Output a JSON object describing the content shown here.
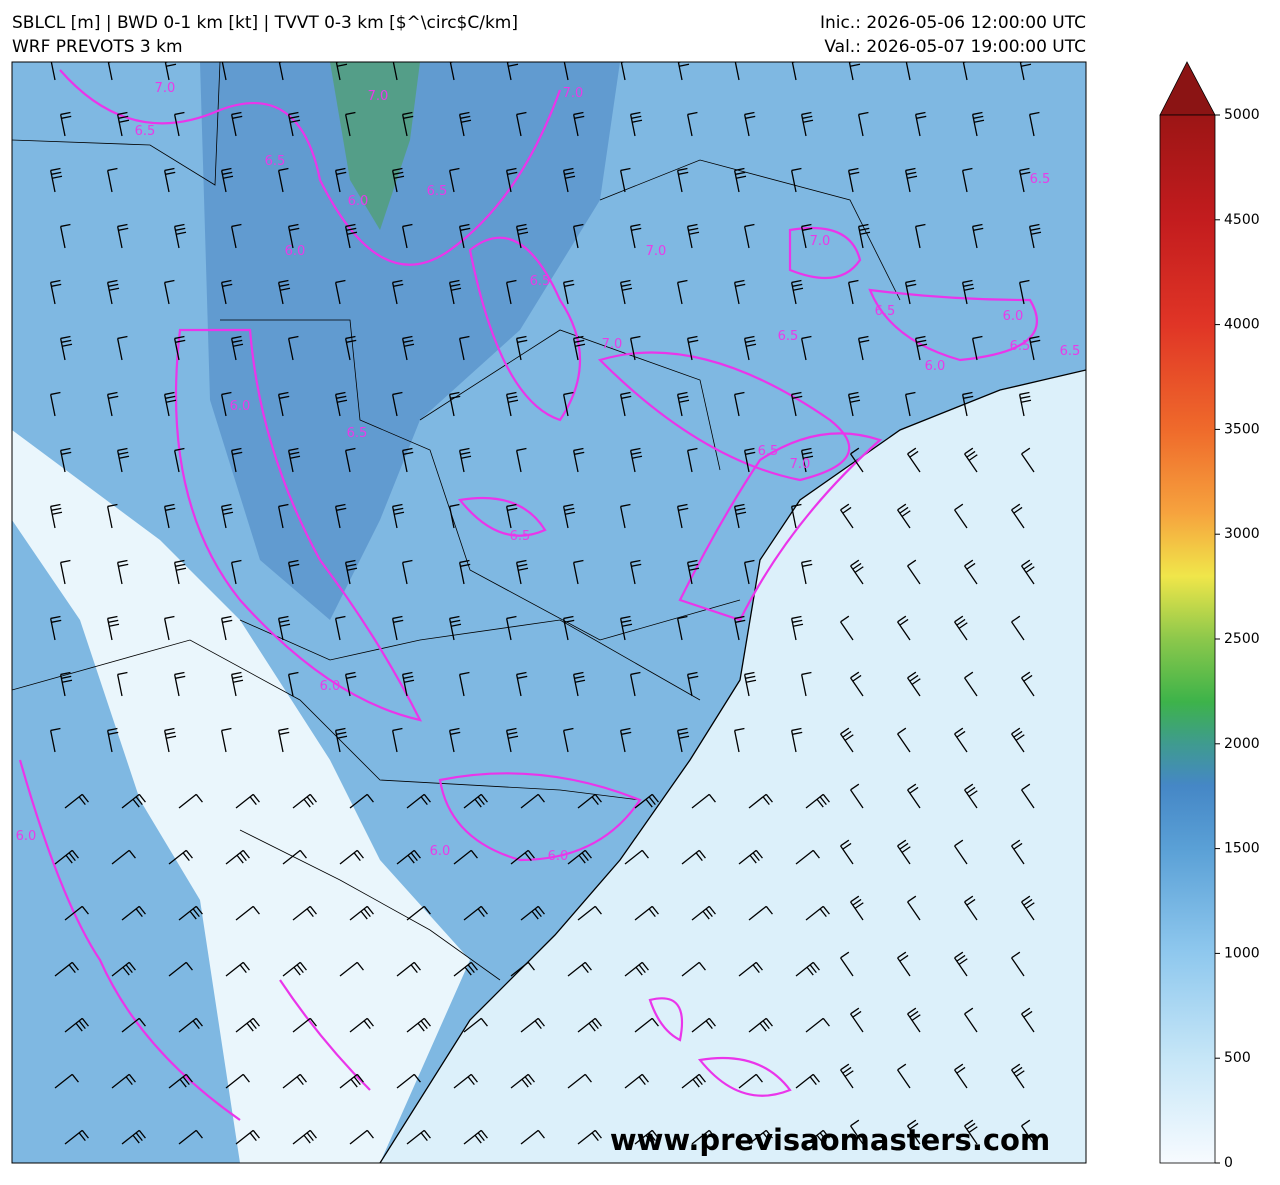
{
  "header": {
    "title_left": "SBLCL [m] | BWD 0-1 km [kt] | TVVT 0-3 km [$^\\circ$C/km]",
    "subtitle_left": "WRF PREVOTS 3 km",
    "init": "Inic.: 2026-05-06 12:00:00 UTC",
    "valid": "Val.: 2026-05-07 19:00:00 UTC"
  },
  "colorbar": {
    "lim": [
      0,
      5000
    ],
    "ticks": [
      0,
      500,
      1000,
      1500,
      2000,
      2500,
      3000,
      3500,
      4000,
      4500,
      5000
    ]
  },
  "contour_labels": [
    "7.0",
    "6.5",
    "6.5",
    "6.0",
    "6.0",
    "6.5",
    "7.0",
    "7.0",
    "6.5",
    "7.0",
    "7.0",
    "6.5",
    "6.0",
    "6.5",
    "6.5",
    "6.5",
    "7.0",
    "6.5",
    "6.0",
    "7.0",
    "6.5",
    "6.5",
    "6.0",
    "6.5",
    "6.0",
    "6.0",
    "6.0",
    "6.0"
  ],
  "watermark": "www.previsaomasters.com"
}
